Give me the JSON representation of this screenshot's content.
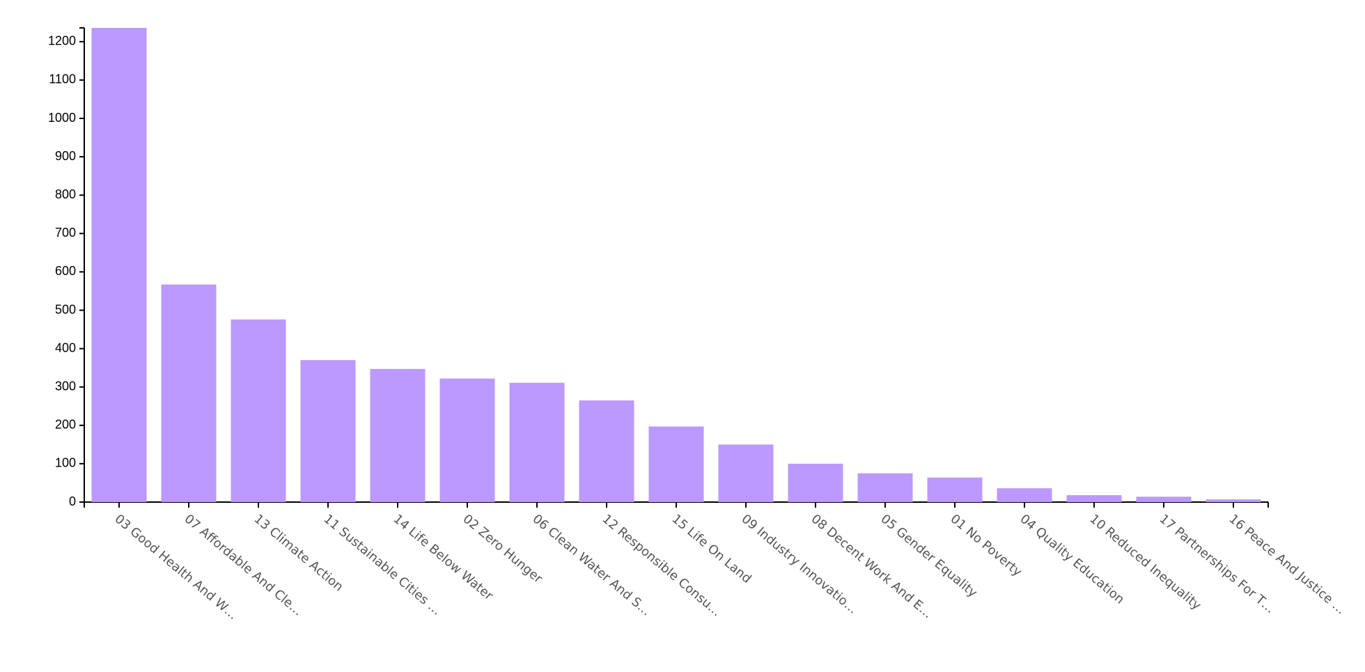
{
  "chart_data": {
    "type": "bar",
    "categories": [
      "03 Good Health And W…",
      "07 Affordable And Cle…",
      "13 Climate Action",
      "11 Sustainable Cities …",
      "14 Life Below Water",
      "02 Zero Hunger",
      "06 Clean Water And S…",
      "12 Responsible Consu…",
      "15 Life On Land",
      "09 Industry Innovatio…",
      "08 Decent Work And E…",
      "05 Gender Equality",
      "01 No Poverty",
      "04 Quality Education",
      "10 Reduced Inequality",
      "17 Partnerships For T…",
      "16 Peace And Justice …"
    ],
    "values": [
      1236,
      567,
      476,
      370,
      347,
      322,
      311,
      265,
      197,
      150,
      100,
      75,
      64,
      36,
      18,
      14,
      7
    ],
    "color": "#bb99ff",
    "ylim": [
      0,
      1236
    ],
    "yticks": [
      0,
      100,
      200,
      300,
      400,
      500,
      600,
      700,
      800,
      900,
      1000,
      1100,
      1200
    ],
    "grid": false
  }
}
